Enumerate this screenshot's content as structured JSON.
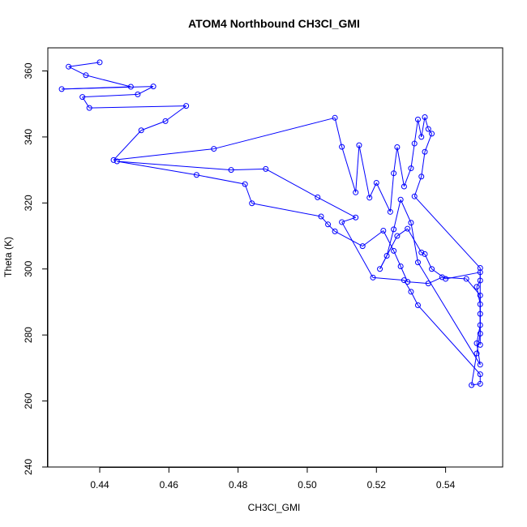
{
  "chart_data": {
    "type": "line",
    "title": "ATOM4 Northbound CH3Cl_GMI",
    "xlabel": "CH3Cl_GMI",
    "ylabel": "Theta (K)",
    "xlim": [
      0.425,
      0.5565
    ],
    "ylim": [
      240,
      367
    ],
    "x_ticks": [
      0.44,
      0.46,
      0.48,
      0.5,
      0.52,
      0.54
    ],
    "x_tick_labels": [
      "0.44",
      "0.46",
      "0.48",
      "0.50",
      "0.52",
      "0.54"
    ],
    "y_ticks": [
      240,
      260,
      280,
      300,
      320,
      340,
      360
    ],
    "y_tick_labels": [
      "240",
      "260",
      "280",
      "300",
      "320",
      "340",
      "360"
    ],
    "grid": false,
    "series": [
      {
        "color": "#0000ff",
        "marker": "open-circle",
        "points": [
          [
            0.44,
            362.6
          ],
          [
            0.431,
            361.3
          ],
          [
            0.436,
            358.7
          ],
          [
            0.449,
            355.2
          ],
          [
            0.429,
            354.5
          ],
          [
            0.4555,
            355.3
          ],
          [
            0.451,
            352.9
          ],
          [
            0.435,
            352.1
          ],
          [
            0.437,
            348.8
          ],
          [
            0.465,
            349.4
          ],
          [
            0.459,
            344.8
          ],
          [
            0.452,
            342.0
          ],
          [
            0.444,
            333.0
          ],
          [
            0.473,
            336.4
          ],
          [
            0.508,
            345.8
          ],
          [
            0.51,
            337.0
          ],
          [
            0.514,
            323.2
          ],
          [
            0.515,
            337.5
          ],
          [
            0.518,
            321.6
          ],
          [
            0.52,
            326.1
          ],
          [
            0.524,
            317.3
          ],
          [
            0.525,
            329.0
          ],
          [
            0.526,
            336.9
          ],
          [
            0.528,
            325.0
          ],
          [
            0.53,
            330.5
          ],
          [
            0.531,
            338.0
          ],
          [
            0.532,
            345.3
          ],
          [
            0.533,
            340.0
          ],
          [
            0.534,
            346.0
          ],
          [
            0.535,
            342.4
          ],
          [
            0.536,
            341.0
          ],
          [
            0.534,
            335.5
          ],
          [
            0.533,
            328.0
          ],
          [
            0.531,
            322.0
          ],
          [
            0.55,
            300.3
          ],
          [
            0.55,
            296.5
          ],
          [
            0.549,
            294.6
          ],
          [
            0.55,
            289.3
          ],
          [
            0.55,
            286.4
          ],
          [
            0.55,
            280.4
          ],
          [
            0.549,
            274.4
          ],
          [
            0.5475,
            264.8
          ],
          [
            0.55,
            265.2
          ],
          [
            0.55,
            268.1
          ],
          [
            0.532,
            289.0
          ],
          [
            0.53,
            293.1
          ],
          [
            0.528,
            296.6
          ],
          [
            0.519,
            297.4
          ],
          [
            0.51,
            314.2
          ],
          [
            0.514,
            315.6
          ],
          [
            0.503,
            321.7
          ],
          [
            0.488,
            330.3
          ],
          [
            0.478,
            330.0
          ],
          [
            0.445,
            332.6
          ],
          [
            0.468,
            328.5
          ],
          [
            0.482,
            325.7
          ],
          [
            0.484,
            319.9
          ],
          [
            0.504,
            315.9
          ],
          [
            0.506,
            313.5
          ],
          [
            0.508,
            311.4
          ],
          [
            0.516,
            306.9
          ],
          [
            0.522,
            311.6
          ],
          [
            0.525,
            305.5
          ],
          [
            0.527,
            300.8
          ],
          [
            0.529,
            296.1
          ],
          [
            0.535,
            295.6
          ],
          [
            0.539,
            297.5
          ],
          [
            0.546,
            297.0
          ],
          [
            0.55,
            292.0
          ],
          [
            0.55,
            283.0
          ],
          [
            0.549,
            277.5
          ],
          [
            0.55,
            271.0
          ],
          [
            0.532,
            302.0
          ],
          [
            0.53,
            314.0
          ],
          [
            0.527,
            321.0
          ],
          [
            0.525,
            312.0
          ],
          [
            0.523,
            304.0
          ],
          [
            0.521,
            300.0
          ],
          [
            0.526,
            310.0
          ],
          [
            0.529,
            312.2
          ],
          [
            0.533,
            305.0
          ],
          [
            0.534,
            304.5
          ],
          [
            0.536,
            300.0
          ],
          [
            0.54,
            297.0
          ],
          [
            0.55,
            299.0
          ],
          [
            0.55,
            277.0
          ]
        ]
      }
    ]
  }
}
